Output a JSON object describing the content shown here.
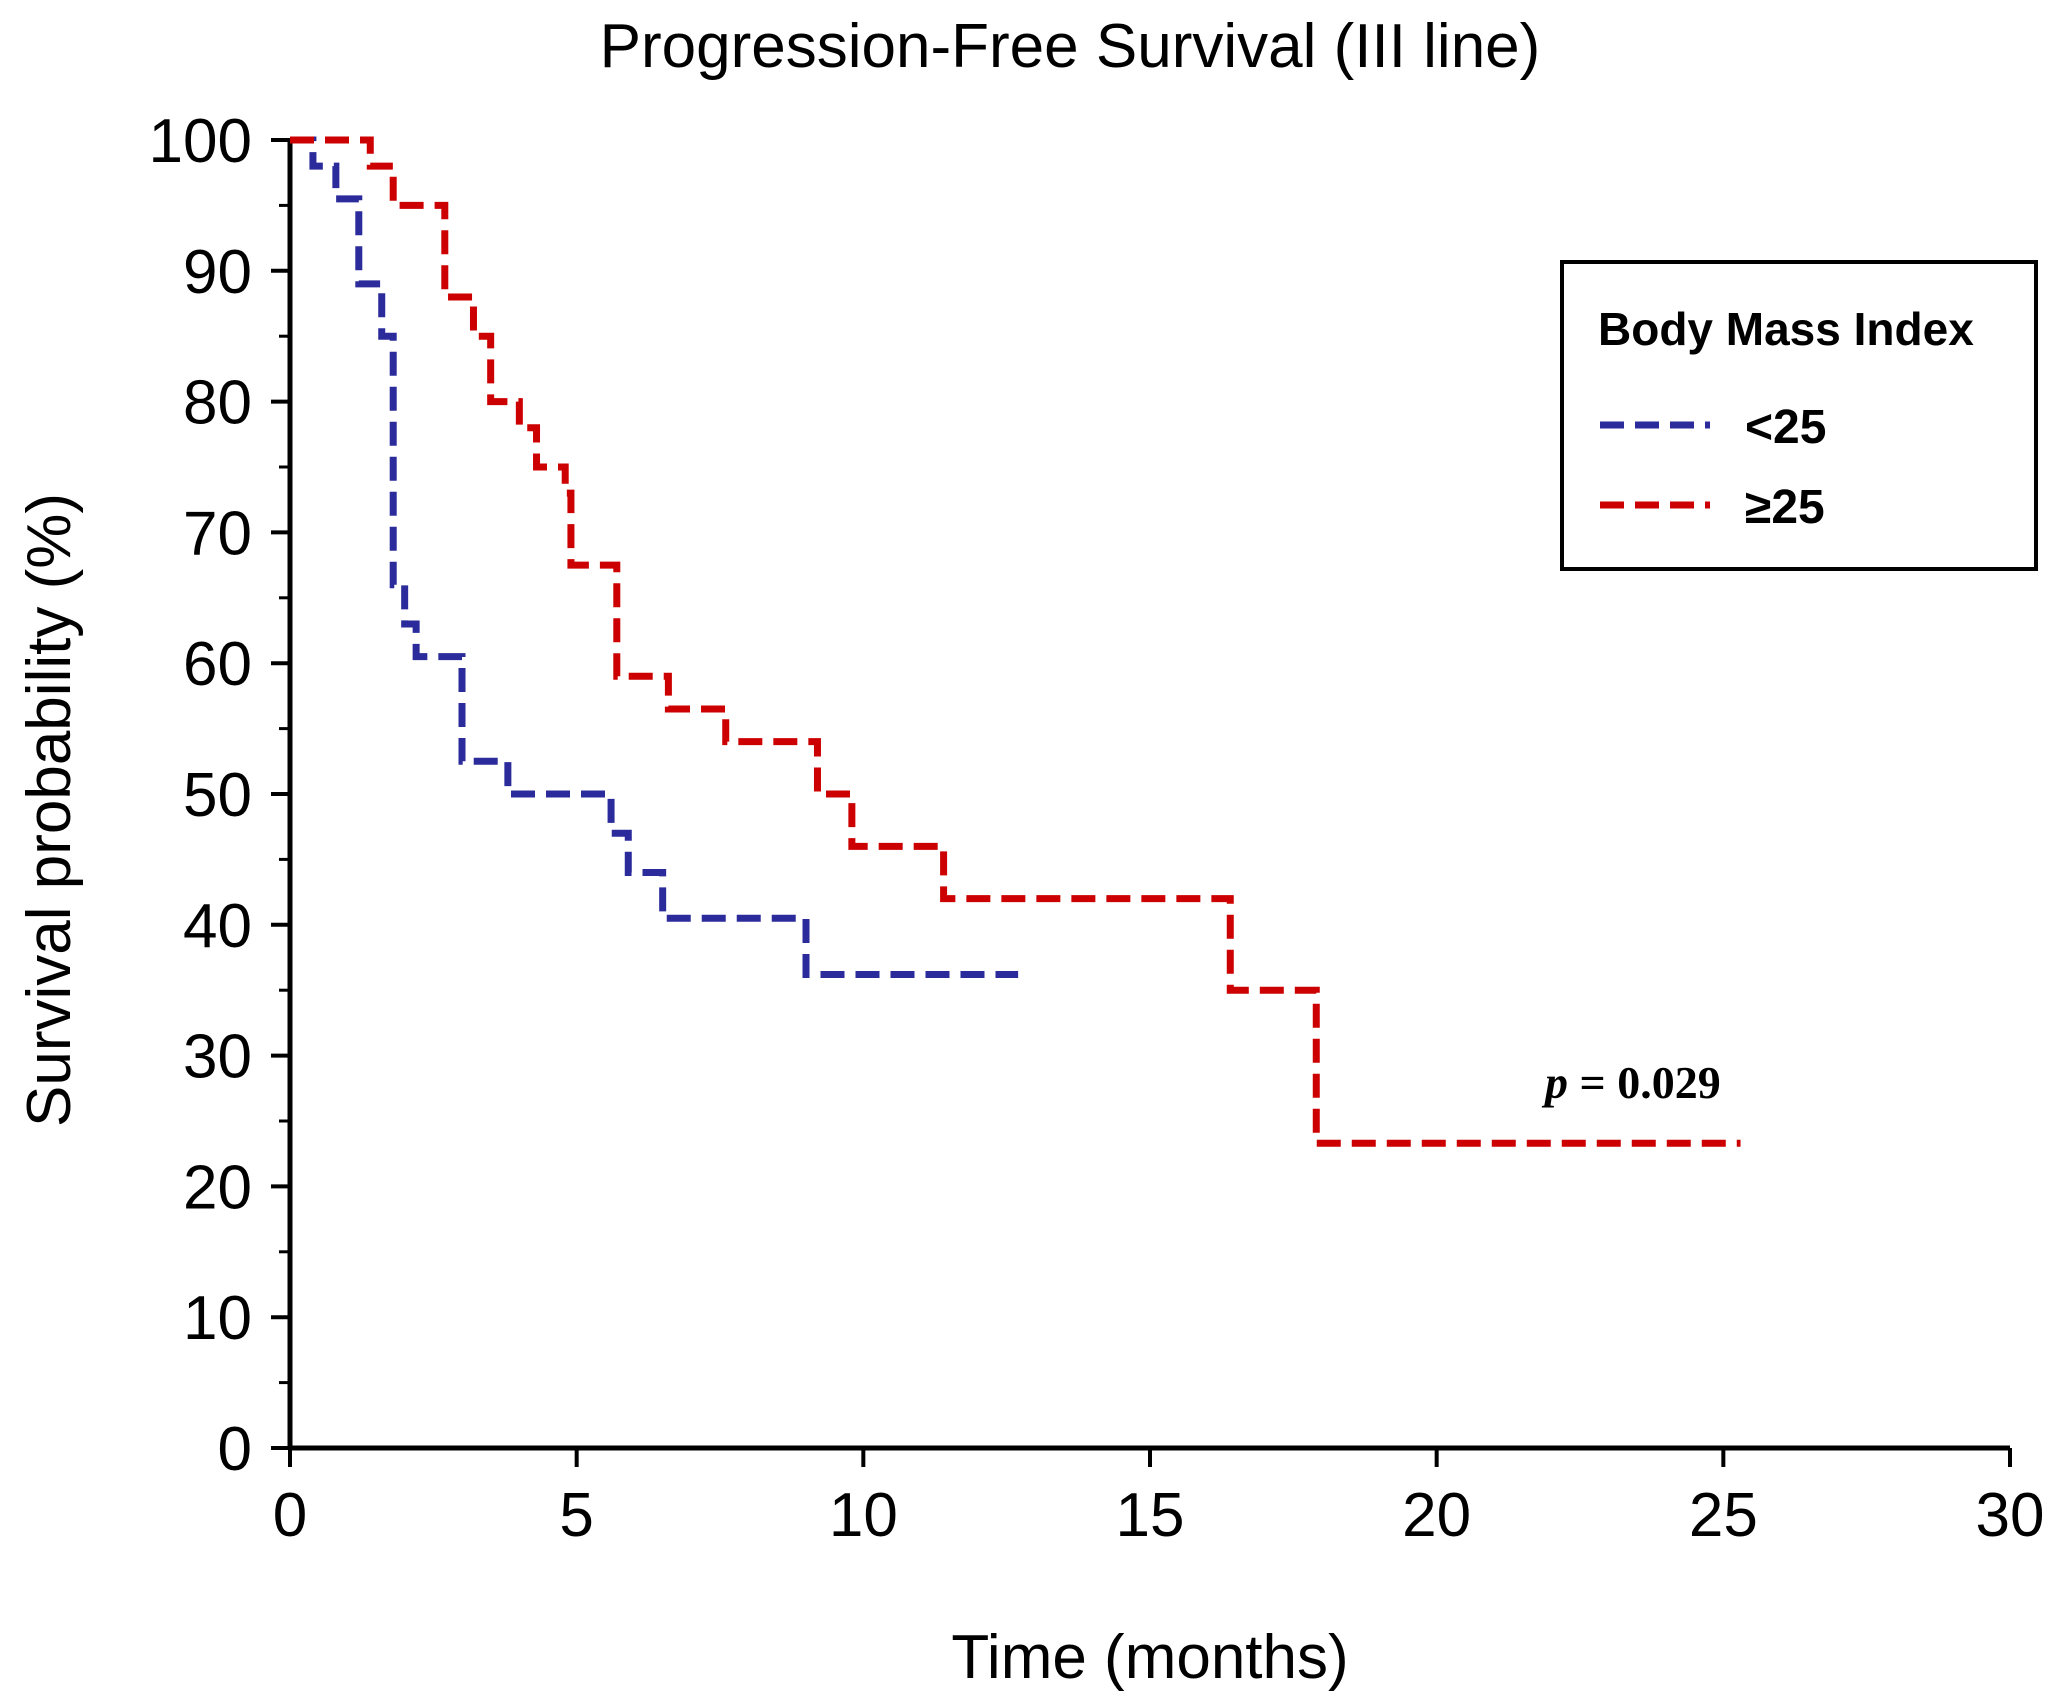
{
  "chart_data": {
    "type": "line",
    "subtype": "kaplan-meier step curve",
    "title": "Progression-Free Survival (III line)",
    "xlabel": "Time (months)",
    "ylabel": "Survival probability (%)",
    "xlim": [
      0,
      30
    ],
    "ylim": [
      0,
      100
    ],
    "xticks": [
      0,
      5,
      10,
      15,
      20,
      25,
      30
    ],
    "yticks": [
      0,
      10,
      20,
      30,
      40,
      50,
      60,
      70,
      80,
      90,
      100
    ],
    "legend": {
      "title": "Body Mass Index",
      "position": "top-right"
    },
    "annotation": {
      "prefix": "p",
      "rest": " = 0.029"
    },
    "series": [
      {
        "name": "<25",
        "color": "#2b2b9c",
        "style": "dashed",
        "end": 12.7,
        "steps": [
          [
            0,
            100
          ],
          [
            0.4,
            98
          ],
          [
            0.8,
            95.5
          ],
          [
            1.2,
            89
          ],
          [
            1.6,
            85
          ],
          [
            1.8,
            66
          ],
          [
            2.0,
            63
          ],
          [
            2.2,
            60.5
          ],
          [
            3.0,
            52.5
          ],
          [
            3.8,
            50
          ],
          [
            5.6,
            47
          ],
          [
            5.9,
            44
          ],
          [
            6.5,
            40.5
          ],
          [
            9.0,
            36.2
          ]
        ]
      },
      {
        "name": "≥25",
        "color": "#cc0000",
        "style": "dashed",
        "end": 25.3,
        "steps": [
          [
            0,
            100
          ],
          [
            1.4,
            98
          ],
          [
            1.8,
            95
          ],
          [
            2.7,
            88
          ],
          [
            3.2,
            85
          ],
          [
            3.5,
            80
          ],
          [
            4.0,
            78
          ],
          [
            4.3,
            75
          ],
          [
            4.8,
            73
          ],
          [
            4.9,
            67.5
          ],
          [
            5.7,
            59
          ],
          [
            6.6,
            56.5
          ],
          [
            7.6,
            54
          ],
          [
            9.2,
            50
          ],
          [
            9.8,
            46
          ],
          [
            11.4,
            42
          ],
          [
            16.4,
            35
          ],
          [
            17.9,
            23.3
          ]
        ]
      }
    ]
  }
}
